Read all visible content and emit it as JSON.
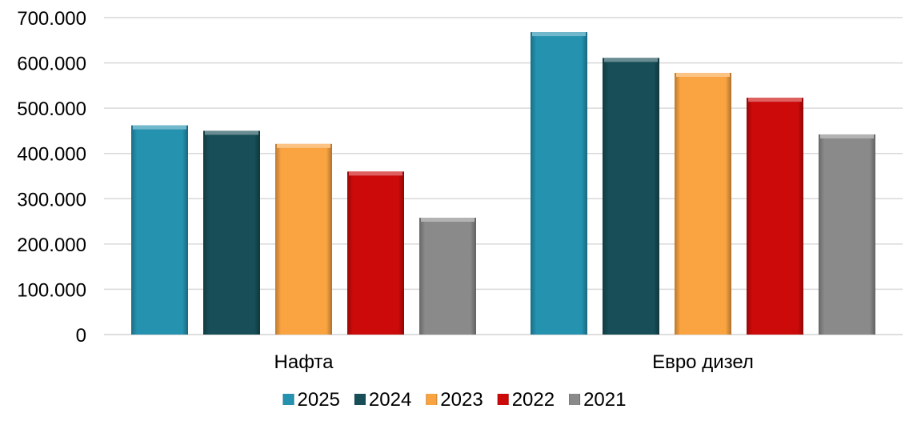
{
  "chart_data": {
    "type": "bar",
    "title": "",
    "xlabel": "",
    "ylabel": "",
    "categories": [
      "Нафта",
      "Евро дизел"
    ],
    "series": [
      {
        "name": "2025",
        "values": [
          462000,
          668000
        ],
        "color": "#2592B0"
      },
      {
        "name": "2024",
        "values": [
          450000,
          611000
        ],
        "color": "#174E57"
      },
      {
        "name": "2023",
        "values": [
          421000,
          578000
        ],
        "color": "#F9A341"
      },
      {
        "name": "2022",
        "values": [
          360000,
          523000
        ],
        "color": "#CC0A0A"
      },
      {
        "name": "2021",
        "values": [
          258000,
          442000
        ],
        "color": "#8A8A8A"
      }
    ],
    "ylim": [
      0,
      700000
    ],
    "yticks": [
      {
        "value": 0,
        "label": "0"
      },
      {
        "value": 100000,
        "label": "100.000"
      },
      {
        "value": 200000,
        "label": "200.000"
      },
      {
        "value": 300000,
        "label": "300.000"
      },
      {
        "value": 400000,
        "label": "400.000"
      },
      {
        "value": 500000,
        "label": "500.000"
      },
      {
        "value": 600000,
        "label": "600.000"
      },
      {
        "value": 700000,
        "label": "700.000"
      }
    ],
    "grid": true,
    "legend_position": "bottom"
  }
}
